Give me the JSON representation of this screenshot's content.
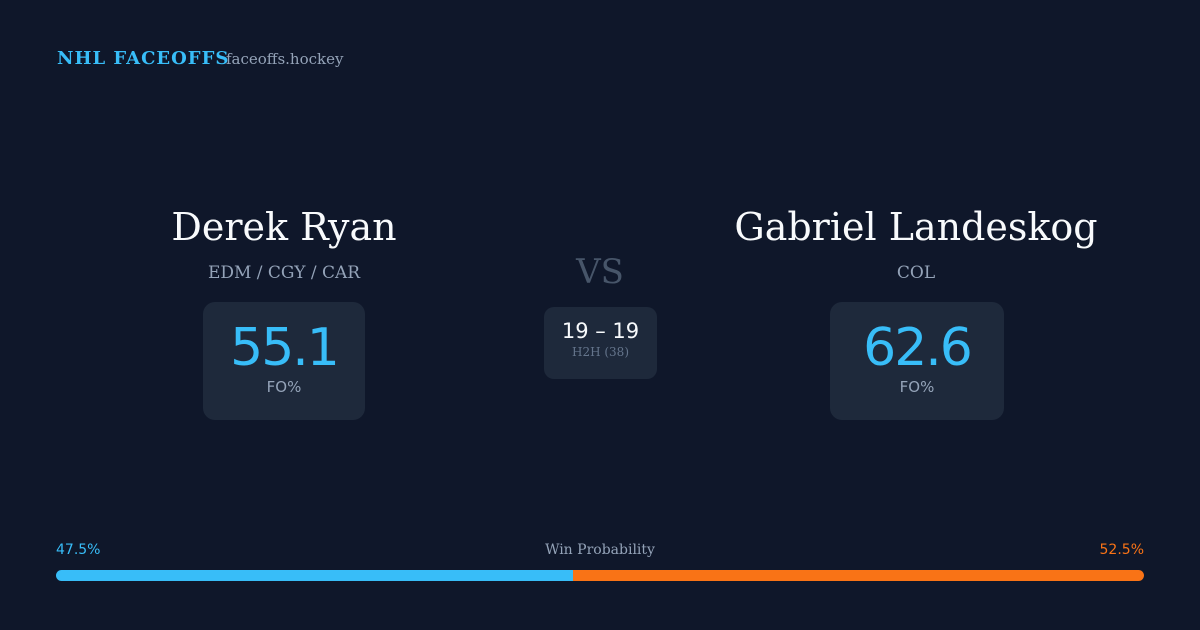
{
  "header": {
    "title": "NHL FACEOFFS",
    "site": "faceoffs.hockey"
  },
  "vs": "VS",
  "players": [
    {
      "name": "Derek Ryan",
      "teams": "EDM / CGY / CAR",
      "fo_pct": 55.1,
      "fo_label": "FO%"
    },
    {
      "name": "Gabriel Landeskog",
      "teams": "COL",
      "fo_pct": 62.6,
      "fo_label": "FO%"
    }
  ],
  "h2h": {
    "score": "19 – 19",
    "label": "H2H (38)"
  },
  "win_probability": {
    "label": "Win Probability",
    "left": {
      "value": 47.5,
      "label": "47.5%",
      "color": "#38bdf8"
    },
    "right": {
      "value": 52.5,
      "label": "52.5%",
      "color": "#f97316"
    }
  }
}
